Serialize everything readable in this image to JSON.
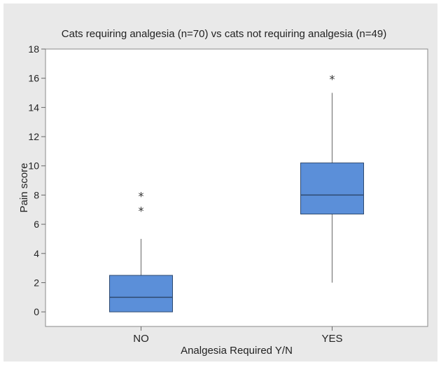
{
  "chart_data": {
    "type": "boxplot",
    "title": "Cats requiring analgesia (n=70) vs cats not requiring analgesia (n=49)",
    "xlabel": "Analgesia Required Y/N",
    "ylabel": "Pain score",
    "ylim": [
      -1,
      18
    ],
    "yticks": [
      0,
      2,
      4,
      6,
      8,
      10,
      12,
      14,
      16,
      18
    ],
    "grid": false,
    "categories": [
      "NO",
      "YES"
    ],
    "series": [
      {
        "values": [
          {
            "category": "NO",
            "whisker_low": 0,
            "q1": 0,
            "median": 1,
            "q3": 2.5,
            "whisker_high": 5,
            "outliers": [
              7,
              8
            ]
          },
          {
            "category": "YES",
            "whisker_low": 2,
            "q1": 6.7,
            "median": 8,
            "q3": 10.2,
            "whisker_high": 15,
            "outliers": [
              16
            ]
          }
        ]
      }
    ],
    "colors": {
      "box_fill": "#5b8fd9",
      "box_stroke": "#2e4a70",
      "whisker": "#7a7a7a",
      "background": "#e9e9e9",
      "plot_area": "#ffffff"
    }
  }
}
